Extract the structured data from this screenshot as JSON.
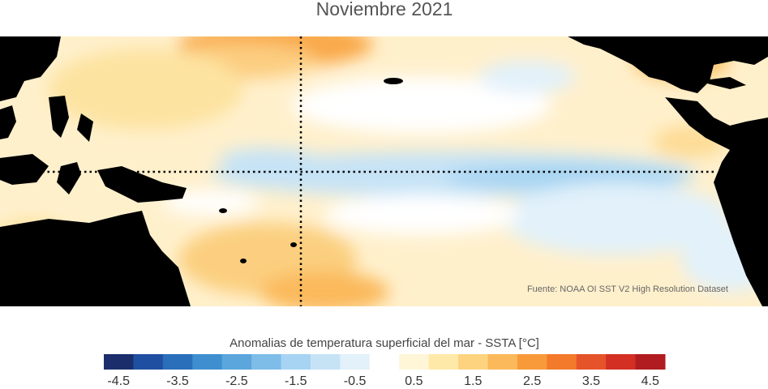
{
  "title": "Noviembre 2021",
  "source": "Fuente: NOAA OI SST V2 High Resolution Dataset",
  "colorbar": {
    "title": "Anomalias de temperatura superficial del mar - SSTA  [°C]",
    "lim": [
      -4.75,
      4.75
    ],
    "ticks": [
      -4.5,
      -3.5,
      -2.5,
      -1.5,
      -0.5,
      0.5,
      1.5,
      2.5,
      3.5,
      4.5
    ],
    "colors": [
      "#1b2e6b",
      "#1f4fa0",
      "#2a6fba",
      "#3f8fd0",
      "#5aa6dd",
      "#7dbde8",
      "#a6d4f2",
      "#c6e3f6",
      "#e2f1fa",
      "#ffffff",
      "#fff6d8",
      "#ffe9a8",
      "#fdd37f",
      "#fbb95b",
      "#f89a3a",
      "#f27a2a",
      "#e5532a",
      "#d32f23",
      "#b01c1f"
    ]
  }
}
